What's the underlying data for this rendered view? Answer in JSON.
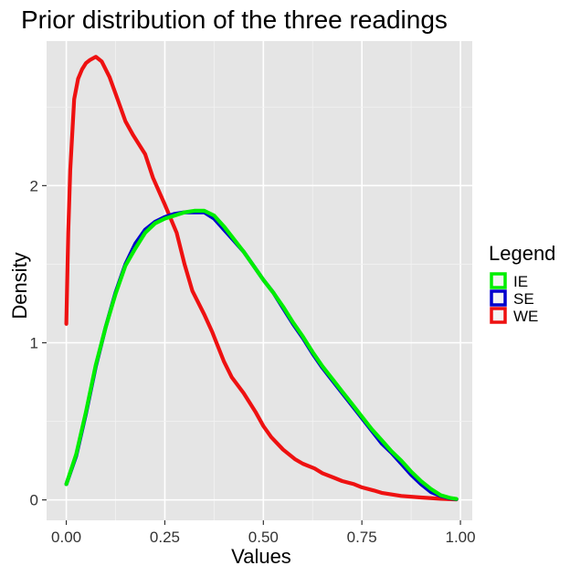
{
  "chart_data": {
    "type": "line",
    "title": "Prior distribution of the three readings",
    "xlabel": "Values",
    "ylabel": "Density",
    "xlim": [
      -0.05,
      1.03
    ],
    "ylim": [
      -0.13,
      2.92
    ],
    "x_ticks": [
      "0.00",
      "0.25",
      "0.50",
      "0.75",
      "1.00"
    ],
    "y_ticks": [
      "0",
      "1",
      "2"
    ],
    "grid": true,
    "legend": {
      "title": "Legend",
      "placement": "right",
      "entries": [
        "IE",
        "SE",
        "WE"
      ]
    },
    "colors": {
      "IE": "#00ee00",
      "SE": "#0000cc",
      "WE": "#ee1111"
    },
    "series": [
      {
        "name": "WE",
        "x": [
          0.0,
          0.005,
          0.01,
          0.02,
          0.03,
          0.04,
          0.05,
          0.06,
          0.075,
          0.09,
          0.11,
          0.13,
          0.15,
          0.17,
          0.2,
          0.22,
          0.25,
          0.28,
          0.3,
          0.32,
          0.35,
          0.37,
          0.4,
          0.42,
          0.45,
          0.48,
          0.5,
          0.52,
          0.55,
          0.58,
          0.6,
          0.63,
          0.65,
          0.68,
          0.7,
          0.73,
          0.75,
          0.78,
          0.8,
          0.85,
          0.9,
          0.95,
          0.99
        ],
        "values": [
          1.12,
          1.7,
          2.1,
          2.55,
          2.68,
          2.74,
          2.78,
          2.8,
          2.82,
          2.79,
          2.69,
          2.55,
          2.41,
          2.32,
          2.2,
          2.05,
          1.88,
          1.7,
          1.5,
          1.33,
          1.18,
          1.07,
          0.88,
          0.78,
          0.68,
          0.56,
          0.47,
          0.4,
          0.32,
          0.26,
          0.23,
          0.2,
          0.17,
          0.14,
          0.12,
          0.1,
          0.08,
          0.06,
          0.045,
          0.025,
          0.015,
          0.007,
          0.003
        ]
      },
      {
        "name": "SE",
        "x": [
          0.0,
          0.025,
          0.05,
          0.075,
          0.1,
          0.125,
          0.15,
          0.175,
          0.2,
          0.225,
          0.25,
          0.275,
          0.3,
          0.325,
          0.35,
          0.375,
          0.4,
          0.425,
          0.45,
          0.475,
          0.5,
          0.525,
          0.55,
          0.575,
          0.6,
          0.625,
          0.65,
          0.675,
          0.7,
          0.725,
          0.75,
          0.775,
          0.8,
          0.825,
          0.85,
          0.875,
          0.9,
          0.925,
          0.95,
          0.975,
          0.99
        ],
        "values": [
          0.1,
          0.28,
          0.55,
          0.85,
          1.1,
          1.32,
          1.5,
          1.63,
          1.72,
          1.77,
          1.8,
          1.82,
          1.83,
          1.83,
          1.83,
          1.79,
          1.72,
          1.65,
          1.58,
          1.49,
          1.4,
          1.32,
          1.22,
          1.12,
          1.03,
          0.93,
          0.84,
          0.76,
          0.68,
          0.6,
          0.52,
          0.44,
          0.36,
          0.3,
          0.23,
          0.16,
          0.1,
          0.05,
          0.025,
          0.01,
          0.005
        ]
      },
      {
        "name": "IE",
        "x": [
          0.0,
          0.025,
          0.05,
          0.075,
          0.1,
          0.125,
          0.15,
          0.175,
          0.2,
          0.225,
          0.25,
          0.275,
          0.3,
          0.325,
          0.35,
          0.375,
          0.4,
          0.425,
          0.45,
          0.475,
          0.5,
          0.525,
          0.55,
          0.575,
          0.6,
          0.625,
          0.65,
          0.675,
          0.7,
          0.725,
          0.75,
          0.775,
          0.8,
          0.825,
          0.85,
          0.875,
          0.9,
          0.925,
          0.95,
          0.975,
          0.99
        ],
        "values": [
          0.1,
          0.29,
          0.56,
          0.86,
          1.1,
          1.31,
          1.49,
          1.6,
          1.7,
          1.76,
          1.79,
          1.81,
          1.83,
          1.84,
          1.84,
          1.81,
          1.74,
          1.66,
          1.58,
          1.49,
          1.4,
          1.32,
          1.23,
          1.13,
          1.04,
          0.94,
          0.85,
          0.77,
          0.69,
          0.61,
          0.53,
          0.45,
          0.38,
          0.31,
          0.25,
          0.18,
          0.12,
          0.07,
          0.03,
          0.012,
          0.006
        ]
      }
    ]
  }
}
